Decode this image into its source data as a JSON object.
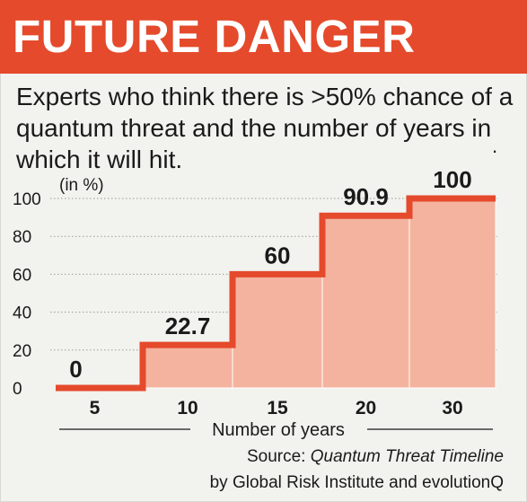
{
  "header": {
    "title": "FUTURE DANGER",
    "subtitle": "Experts who think there is >50% chance of a quantum threat and the number of years in which it will hit.",
    "dot": "."
  },
  "colors": {
    "banner": "#e44a2b",
    "line": "#e44a2b",
    "fill": "#f4b39f",
    "grid": "#9a9a96",
    "text": "#1a1a1a"
  },
  "chart_data": {
    "type": "bar",
    "style": "step-area",
    "categories": [
      "5",
      "10",
      "15",
      "20",
      "30"
    ],
    "values": [
      0,
      22.7,
      60,
      90.9,
      100
    ],
    "value_labels": [
      "0",
      "22.7",
      "60",
      "90.9",
      "100"
    ],
    "yticks": [
      0,
      20,
      40,
      60,
      80,
      100
    ],
    "ylim": [
      0,
      100
    ],
    "xlabel": "Number of years",
    "ylabel_unit": "(in %)",
    "grid": true
  },
  "source": {
    "prefix": "Source: ",
    "title": "Quantum Threat Timeline",
    "line2": "by Global Risk Institute and evolutionQ"
  }
}
